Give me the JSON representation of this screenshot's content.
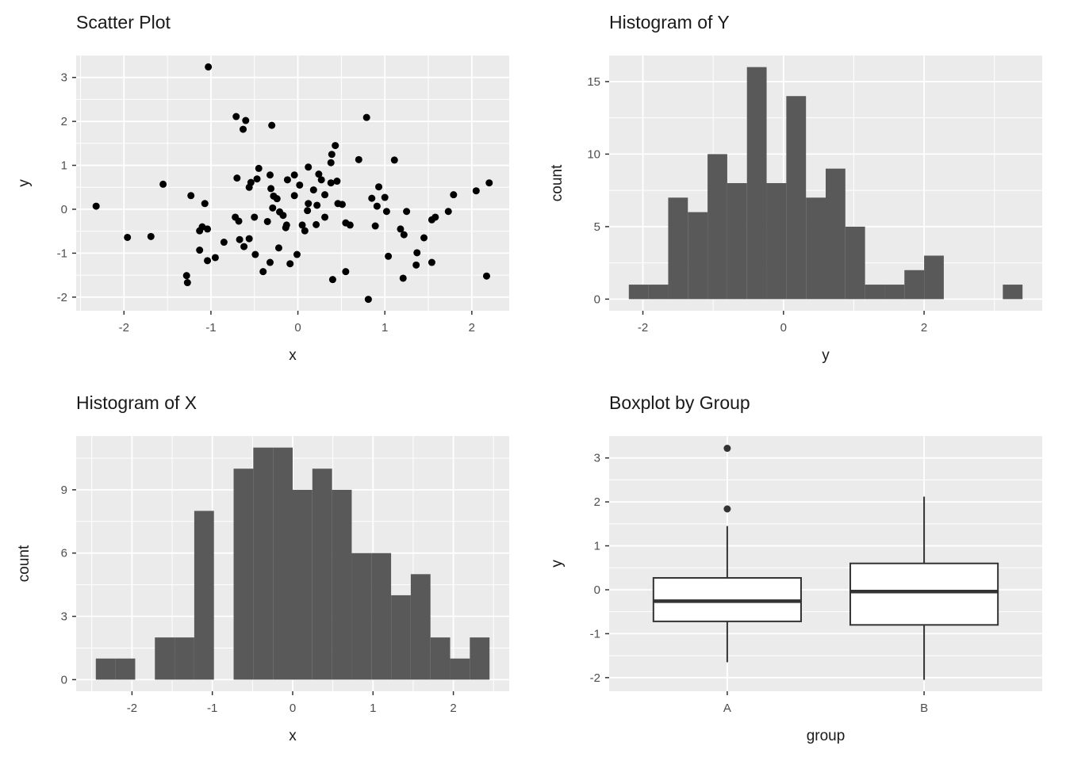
{
  "theme": {
    "page_bg": "#FFFFFF",
    "panel_bg": "#EBEBEB",
    "grid_color": "#FFFFFF",
    "bar_color": "#595959",
    "point_color": "#000000",
    "box_stroke": "#333333",
    "box_fill": "#FFFFFF",
    "tick_label_color": "#4D4D4D",
    "tick_mark_color": "#333333",
    "title_color": "#1A1A1A"
  },
  "chart_data": [
    {
      "id": "scatter",
      "type": "scatter",
      "title": "Scatter Plot",
      "xlabel": "x",
      "ylabel": "y",
      "xlim": [
        -2.55,
        2.43
      ],
      "ylim": [
        -2.31,
        3.5
      ],
      "x_major": [
        -2,
        -1,
        0,
        1,
        2
      ],
      "x_minor": [
        -2.5,
        -1.5,
        -0.5,
        0.5,
        1.5
      ],
      "y_major": [
        -2,
        -1,
        0,
        1,
        2,
        3
      ],
      "y_minor": [
        -1.5,
        -0.5,
        0.5,
        1.5,
        2.5
      ],
      "points": [
        [
          -1.03,
          3.24
        ],
        [
          -0.71,
          2.11
        ],
        [
          -0.6,
          2.02
        ],
        [
          -0.63,
          1.82
        ],
        [
          -0.3,
          1.91
        ],
        [
          0.79,
          2.09
        ],
        [
          0.43,
          1.45
        ],
        [
          0.39,
          1.25
        ],
        [
          0.38,
          1.06
        ],
        [
          0.7,
          1.13
        ],
        [
          1.11,
          1.12
        ],
        [
          0.12,
          0.96
        ],
        [
          -0.04,
          0.78
        ],
        [
          0.24,
          0.8
        ],
        [
          -1.55,
          0.57
        ],
        [
          -0.7,
          0.71
        ],
        [
          -0.45,
          0.93
        ],
        [
          -0.47,
          0.69
        ],
        [
          -0.32,
          0.78
        ],
        [
          -0.54,
          0.61
        ],
        [
          2.2,
          0.6
        ],
        [
          -2.32,
          0.07
        ],
        [
          -1.23,
          0.31
        ],
        [
          -1.07,
          0.13
        ],
        [
          -1.96,
          -0.64
        ],
        [
          -1.69,
          -0.62
        ],
        [
          -1.13,
          -0.49
        ],
        [
          -1.1,
          -0.4
        ],
        [
          -1.04,
          -0.45
        ],
        [
          -1.13,
          -0.93
        ],
        [
          -1.04,
          -1.17
        ],
        [
          -1.28,
          -1.51
        ],
        [
          -1.27,
          -1.67
        ],
        [
          -0.56,
          0.5
        ],
        [
          -0.31,
          0.47
        ],
        [
          -0.28,
          0.3
        ],
        [
          -0.29,
          0.03
        ],
        [
          -0.21,
          -0.06
        ],
        [
          -0.72,
          -0.18
        ],
        [
          -0.68,
          -0.27
        ],
        [
          -0.5,
          -0.18
        ],
        [
          -0.35,
          -0.28
        ],
        [
          -0.67,
          -0.69
        ],
        [
          -0.62,
          -0.85
        ],
        [
          -0.56,
          -0.67
        ],
        [
          -0.49,
          -1.03
        ],
        [
          -0.22,
          -0.88
        ],
        [
          -0.32,
          -1.21
        ],
        [
          -0.4,
          -1.42
        ],
        [
          -0.13,
          -0.36
        ],
        [
          0.27,
          0.67
        ],
        [
          0.45,
          0.64
        ],
        [
          0.18,
          0.44
        ],
        [
          -0.04,
          0.31
        ],
        [
          0.31,
          0.33
        ],
        [
          0.93,
          0.51
        ],
        [
          0.85,
          0.25
        ],
        [
          1.0,
          0.27
        ],
        [
          0.91,
          0.07
        ],
        [
          1.02,
          -0.05
        ],
        [
          0.12,
          0.13
        ],
        [
          0.22,
          0.09
        ],
        [
          0.11,
          -0.03
        ],
        [
          0.46,
          0.13
        ],
        [
          0.51,
          0.11
        ],
        [
          0.31,
          -0.18
        ],
        [
          0.21,
          -0.35
        ],
        [
          0.05,
          -0.36
        ],
        [
          0.08,
          -0.49
        ],
        [
          -0.14,
          -0.42
        ],
        [
          0.55,
          -0.31
        ],
        [
          0.6,
          -0.36
        ],
        [
          0.89,
          -0.38
        ],
        [
          1.25,
          -0.05
        ],
        [
          1.54,
          -0.24
        ],
        [
          1.58,
          -0.18
        ],
        [
          1.73,
          -0.05
        ],
        [
          1.79,
          0.33
        ],
        [
          2.05,
          0.42
        ],
        [
          1.18,
          -0.45
        ],
        [
          1.22,
          -0.58
        ],
        [
          1.37,
          -0.99
        ],
        [
          1.54,
          -1.21
        ],
        [
          1.36,
          -1.27
        ],
        [
          1.04,
          -1.07
        ],
        [
          1.21,
          -1.57
        ],
        [
          0.4,
          -1.6
        ],
        [
          0.55,
          -1.42
        ],
        [
          0.81,
          -2.05
        ],
        [
          2.17,
          -1.52
        ],
        [
          -0.01,
          -1.03
        ],
        [
          -0.09,
          -1.24
        ],
        [
          0.38,
          0.6
        ],
        [
          -0.12,
          0.67
        ],
        [
          -0.24,
          0.24
        ],
        [
          -0.17,
          -0.14
        ],
        [
          0.02,
          0.55
        ],
        [
          -0.85,
          -0.75
        ],
        [
          -0.95,
          -1.1
        ],
        [
          1.45,
          -0.65
        ]
      ]
    },
    {
      "id": "hist_y",
      "type": "histogram",
      "title": "Histogram of Y",
      "xlabel": "y",
      "ylabel": "count",
      "xlim": [
        -2.48,
        3.68
      ],
      "ylim": [
        -0.8,
        16.8
      ],
      "bin_start": -2.2,
      "bin_width": 0.28,
      "counts": [
        1,
        1,
        7,
        6,
        10,
        8,
        16,
        8,
        14,
        7,
        9,
        5,
        1,
        1,
        2,
        3,
        0,
        0,
        0,
        1
      ],
      "x_major": [
        -2,
        0,
        2
      ],
      "x_minor": [
        -1,
        1,
        3
      ],
      "y_major": [
        0,
        5,
        10,
        15
      ],
      "y_minor": [
        2.5,
        7.5,
        12.5
      ]
    },
    {
      "id": "hist_x",
      "type": "histogram",
      "title": "Histogram of X",
      "xlabel": "x",
      "ylabel": "count",
      "xlim": [
        -2.695,
        2.695
      ],
      "ylim": [
        -0.55,
        11.55
      ],
      "bin_start": -2.45,
      "bin_width": 0.245,
      "counts": [
        1,
        1,
        0,
        2,
        2,
        8,
        0,
        10,
        11,
        11,
        9,
        10,
        9,
        6,
        6,
        4,
        5,
        2,
        1,
        2
      ],
      "x_major": [
        -2,
        -1,
        0,
        1,
        2
      ],
      "x_minor": [
        -2.5,
        -1.5,
        -0.5,
        0.5,
        1.5,
        2.5
      ],
      "y_major": [
        0,
        3,
        6,
        9
      ],
      "y_minor": [
        1.5,
        4.5,
        7.5,
        10.5
      ]
    },
    {
      "id": "boxplot",
      "type": "box",
      "title": "Boxplot by Group",
      "xlabel": "group",
      "ylabel": "y",
      "xlim": [
        0.4,
        2.6
      ],
      "ylim": [
        -2.31,
        3.5
      ],
      "categories": [
        "A",
        "B"
      ],
      "x_major_positions": [
        1,
        2
      ],
      "y_major": [
        -2,
        -1,
        0,
        1,
        2,
        3
      ],
      "y_minor": [
        -1.5,
        -0.5,
        0.5,
        1.5,
        2.5
      ],
      "box_width": 0.75,
      "groups": [
        {
          "label": "A",
          "whisker_low": -1.65,
          "q1": -0.72,
          "median": -0.26,
          "q3": 0.27,
          "whisker_high": 1.45,
          "outliers": [
            1.84,
            3.22
          ]
        },
        {
          "label": "B",
          "whisker_low": -2.05,
          "q1": -0.8,
          "median": -0.04,
          "q3": 0.6,
          "whisker_high": 2.12,
          "outliers": []
        }
      ]
    }
  ]
}
